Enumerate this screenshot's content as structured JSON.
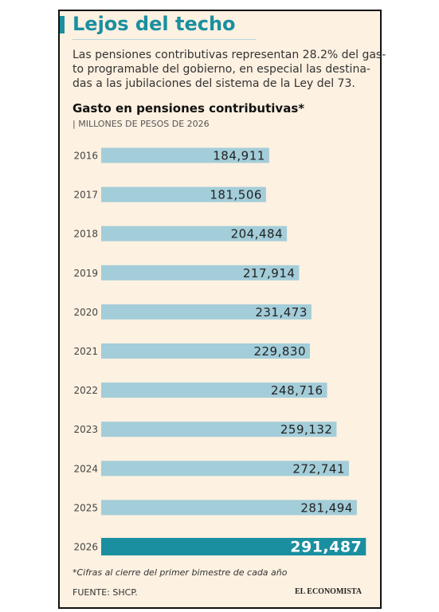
{
  "chart_data": {
    "type": "bar",
    "orientation": "horizontal",
    "title": "Lejos del techo",
    "description": [
      "Las pensiones contributivas representan 28.2% del gas-",
      "to programable del gobierno, en especial las destina-",
      "das a las jubilaciones del sistema de la Ley del 73."
    ],
    "chart_title": "Gasto en pensiones contributivas*",
    "chart_subtitle": "| MILLONES DE PESOS DE 2026",
    "categories": [
      "2016",
      "2017",
      "2018",
      "2019",
      "2020",
      "2021",
      "2022",
      "2023",
      "2024",
      "2025",
      "2026"
    ],
    "values": [
      184911,
      181506,
      204484,
      217914,
      231473,
      229830,
      248716,
      259132,
      272741,
      281494,
      291487
    ],
    "value_labels": [
      "184,911",
      "181,506",
      "204,484",
      "217,914",
      "231,473",
      "229,830",
      "248,716",
      "259,132",
      "272,741",
      "281,494",
      "291,487"
    ],
    "colors": [
      "#a3cdd9",
      "#a3cdd9",
      "#a3cdd9",
      "#a3cdd9",
      "#a3cdd9",
      "#a3cdd9",
      "#a3cdd9",
      "#a3cdd9",
      "#a3cdd9",
      "#a3cdd9",
      "#1a8fa0"
    ],
    "xlim": [
      0,
      300000
    ],
    "footnote": "*Cifras al cierre del primer bimestre de cada año",
    "source": "FUENTE: SHCP.",
    "brand": "EL ECONOMISTA"
  }
}
